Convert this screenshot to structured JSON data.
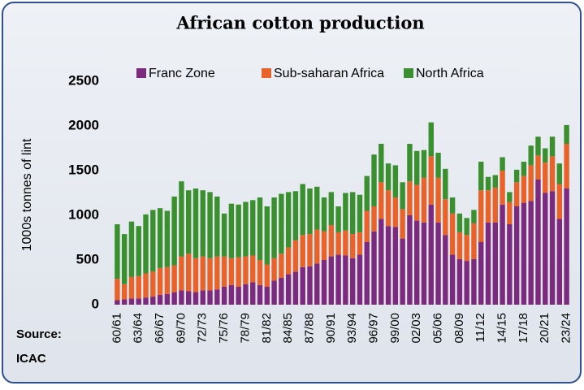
{
  "chart_data": {
    "type": "stacked_bar",
    "title": "African cotton production",
    "y_label": "1000s tonnes of lint",
    "source": "Source:",
    "source_name": "ICAC",
    "categories": [
      "60/61",
      null,
      null,
      "63/64",
      null,
      null,
      "66/67",
      null,
      null,
      "69/70",
      null,
      null,
      "72/73",
      null,
      null,
      "75/76",
      null,
      null,
      "78/79",
      null,
      null,
      "81/82",
      null,
      null,
      "84/85",
      null,
      null,
      "87/88",
      null,
      null,
      "90/91",
      null,
      null,
      "93/94",
      null,
      null,
      "96/97",
      null,
      null,
      "99/00",
      null,
      null,
      "02/03",
      null,
      null,
      "05/06",
      null,
      null,
      "08/09",
      null,
      null,
      "11/12",
      null,
      null,
      "14/15",
      null,
      null,
      "17/18",
      null,
      null,
      "20/21",
      null,
      null,
      "23/24"
    ],
    "series": [
      {
        "name": "Franc Zone",
        "color": "#7b2a7d",
        "values": [
          50,
          60,
          70,
          70,
          80,
          90,
          110,
          120,
          140,
          160,
          150,
          140,
          160,
          160,
          170,
          200,
          220,
          200,
          230,
          250,
          220,
          200,
          270,
          300,
          340,
          370,
          420,
          430,
          460,
          500,
          540,
          560,
          550,
          520,
          560,
          700,
          820,
          960,
          880,
          870,
          740,
          1000,
          940,
          920,
          1120,
          920,
          780,
          560,
          510,
          490,
          510,
          700,
          920,
          920,
          1120,
          900,
          1100,
          1140,
          1160,
          1400,
          1250,
          1270,
          960,
          1300
        ]
      },
      {
        "name": "Sub-saharan Africa",
        "color": "#e8622a",
        "values": [
          240,
          170,
          240,
          250,
          270,
          280,
          300,
          300,
          300,
          380,
          420,
          380,
          380,
          360,
          370,
          340,
          300,
          330,
          310,
          300,
          280,
          250,
          250,
          270,
          300,
          350,
          360,
          360,
          380,
          320,
          350,
          250,
          280,
          270,
          250,
          350,
          280,
          410,
          400,
          330,
          330,
          380,
          400,
          500,
          540,
          500,
          400,
          460,
          300,
          290,
          400,
          580,
          360,
          390,
          380,
          250,
          270,
          300,
          400,
          270,
          340,
          390,
          390,
          500
        ]
      },
      {
        "name": "North Africa",
        "color": "#3a8f2e",
        "values": [
          610,
          560,
          620,
          560,
          660,
          690,
          670,
          630,
          770,
          840,
          710,
          780,
          740,
          740,
          670,
          480,
          610,
          590,
          610,
          620,
          700,
          650,
          680,
          670,
          620,
          550,
          570,
          510,
          480,
          380,
          370,
          290,
          420,
          470,
          420,
          390,
          580,
          430,
          300,
          360,
          300,
          420,
          380,
          310,
          380,
          280,
          340,
          180,
          210,
          190,
          150,
          320,
          150,
          140,
          150,
          110,
          140,
          160,
          220,
          210,
          160,
          220,
          230,
          210
        ]
      }
    ],
    "ylim": [
      0,
      2500
    ],
    "yticks": [
      0,
      500,
      1000,
      1500,
      2000,
      2500
    ],
    "grid": false
  }
}
